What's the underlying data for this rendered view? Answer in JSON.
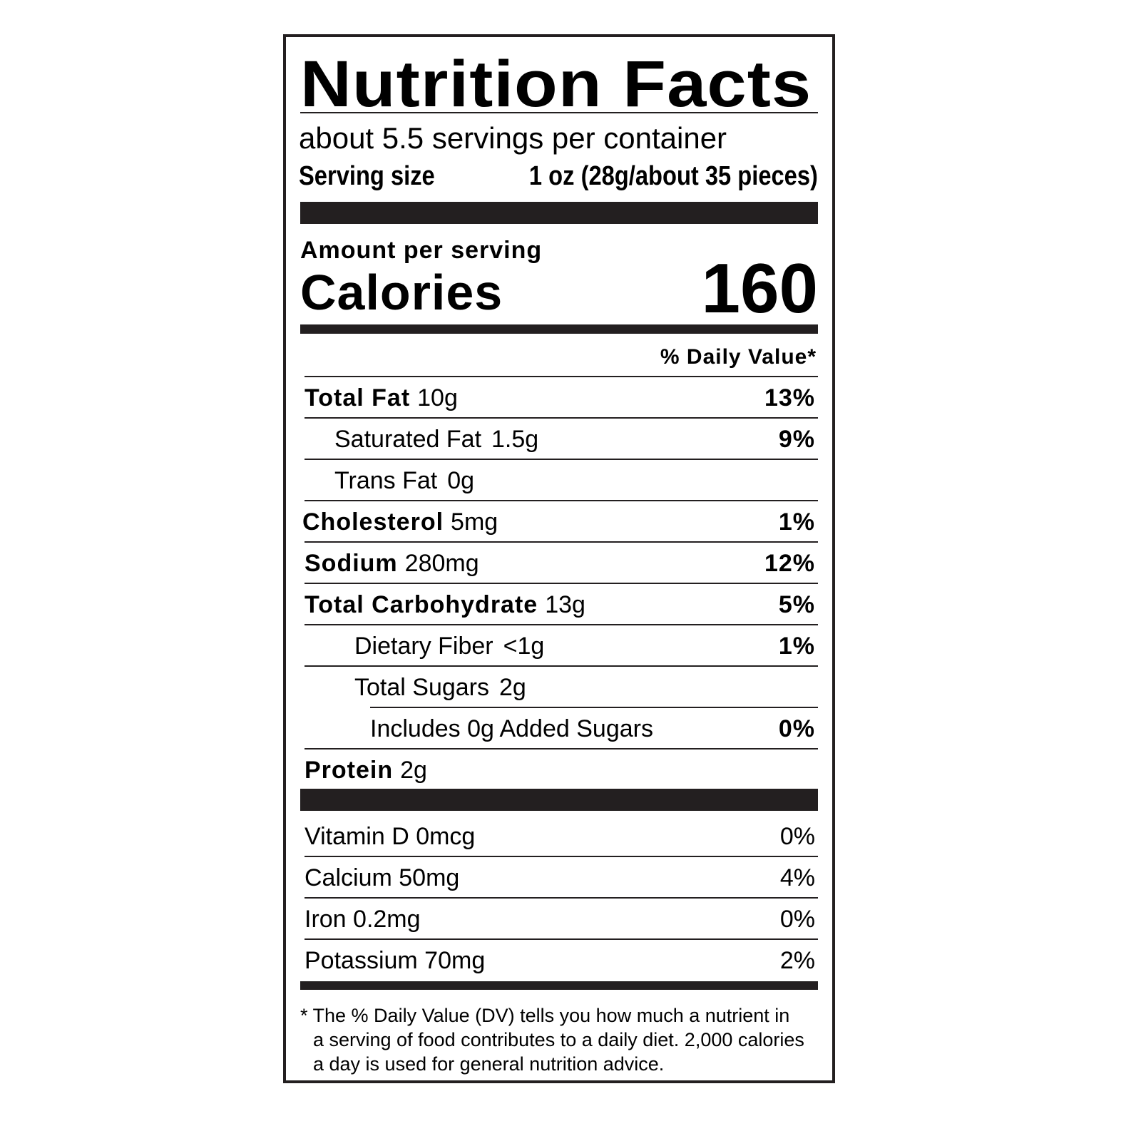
{
  "title": "Nutrition Facts",
  "servings_per_container": "about 5.5 servings per container",
  "serving_size_label": "Serving size",
  "serving_size_value": "1 oz (28g/about 35 pieces)",
  "amount_per_serving": "Amount per serving",
  "calories_label": "Calories",
  "calories_value": "160",
  "daily_value_header": "% Daily Value*",
  "nutrients": [
    {
      "name": "Total Fat",
      "amount": "10g",
      "dv": "13%"
    },
    {
      "name": "Saturated Fat",
      "amount": "1.5g",
      "dv": "9%"
    },
    {
      "name": "Trans Fat",
      "amount": "0g",
      "dv": ""
    },
    {
      "name": "Cholesterol",
      "amount": "5mg",
      "dv": "1%"
    },
    {
      "name": "Sodium",
      "amount": "280mg",
      "dv": "12%"
    },
    {
      "name": "Total Carbohydrate",
      "amount": "13g",
      "dv": "5%"
    },
    {
      "name": "Dietary Fiber",
      "amount": "<1g",
      "dv": "1%"
    },
    {
      "name": "Total Sugars",
      "amount": "2g",
      "dv": ""
    },
    {
      "name": "Includes 0g Added Sugars",
      "amount": "",
      "dv": "0%"
    },
    {
      "name": "Protein",
      "amount": "2g",
      "dv": ""
    }
  ],
  "vitamins": [
    {
      "name": "Vitamin D 0mcg",
      "dv": "0%"
    },
    {
      "name": "Calcium 50mg",
      "dv": "4%"
    },
    {
      "name": "Iron 0.2mg",
      "dv": "0%"
    },
    {
      "name": "Potassium 70mg",
      "dv": "2%"
    }
  ],
  "footnote": [
    "* The % Daily Value (DV) tells you how much a nutrient in",
    "a serving of food contributes to a daily diet. 2,000 calories",
    "a day is used for general nutrition advice."
  ]
}
